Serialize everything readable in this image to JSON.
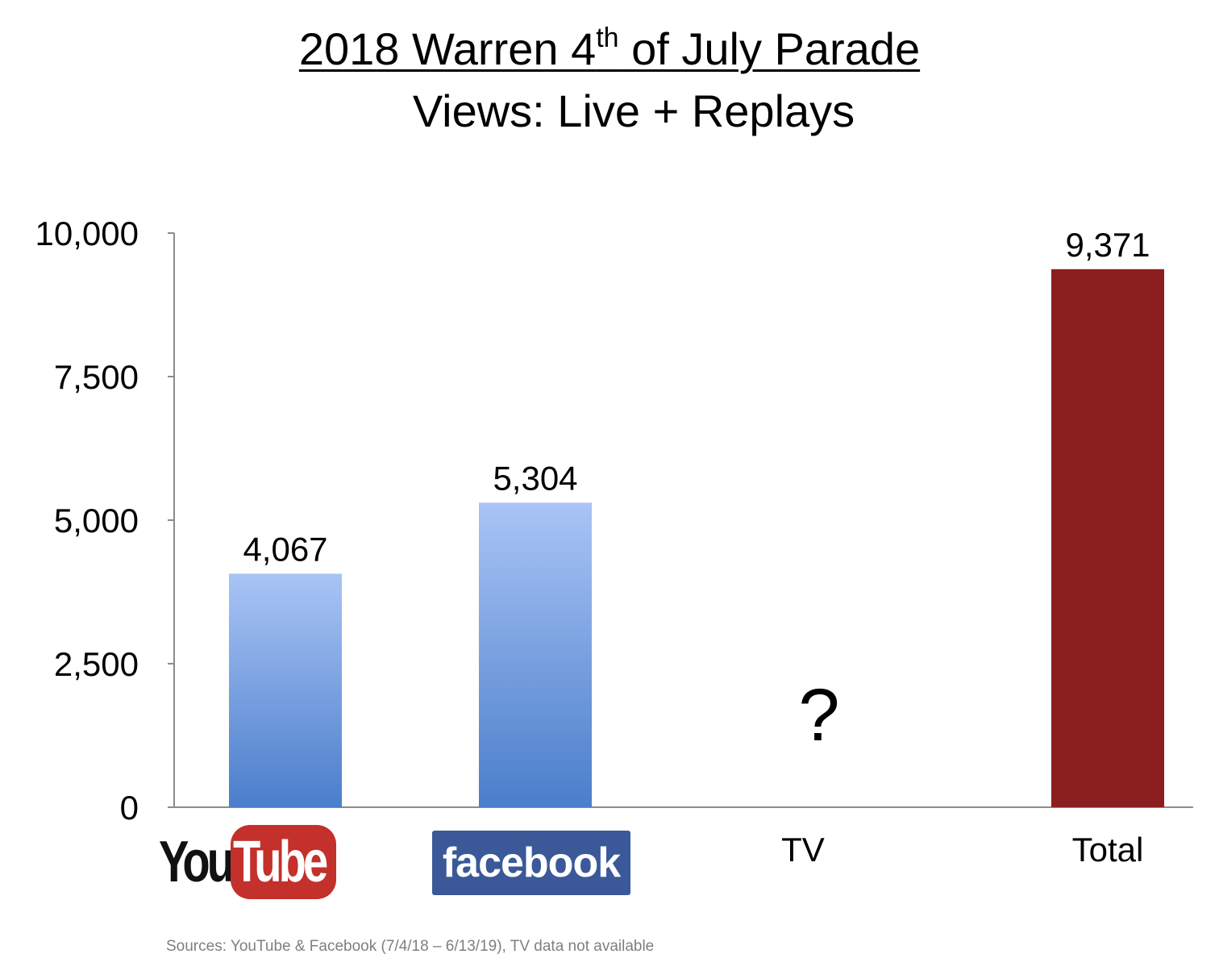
{
  "chart_data": {
    "type": "bar",
    "title_prefix": "2018 Warren 4",
    "title_sup": "th",
    "title_suffix": " of July Parade",
    "subtitle": "Views: Live + Replays",
    "categories": [
      "YouTube",
      "Facebook",
      "TV",
      "Total"
    ],
    "category_labels": [
      "",
      "",
      "TV",
      "Total"
    ],
    "values": [
      4067,
      5304,
      null,
      9371
    ],
    "data_labels": [
      "4,067",
      "5,304",
      "?",
      "9,371"
    ],
    "ylim": [
      0,
      10000
    ],
    "yticks": [
      0,
      2500,
      5000,
      7500,
      10000
    ],
    "ytick_labels": [
      "0",
      "2,500",
      "5,000",
      "7,500",
      "10,000"
    ],
    "xlabel": "",
    "ylabel": "",
    "grid": false,
    "legend": "none",
    "colors": {
      "social_top": "#a9c4f5",
      "social_bottom": "#4a7ecb",
      "total": "#8b1e1e",
      "axis": "#8c8c8c"
    }
  },
  "logos": {
    "youtube_you": "You",
    "youtube_tube": "Tube",
    "facebook": "facebook",
    "youtube_color": "#c4302b",
    "facebook_color": "#3b5998"
  },
  "footer": {
    "sources": "Sources: YouTube & Facebook (7/4/18 – 6/13/19), TV data not available"
  }
}
